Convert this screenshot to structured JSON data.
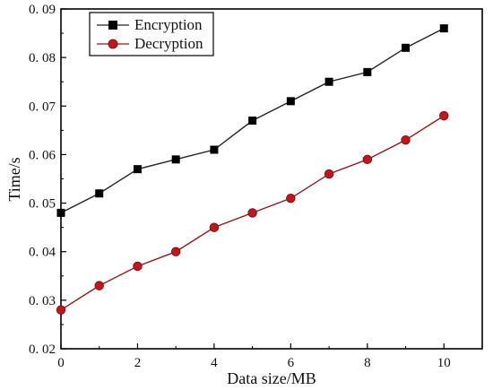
{
  "chart_data": {
    "type": "line",
    "title": "",
    "xlabel": "Data size/MB",
    "ylabel": "Time/s",
    "xlim": [
      0,
      11
    ],
    "ylim": [
      0.02,
      0.09
    ],
    "x_ticks": [
      0,
      2,
      4,
      6,
      8,
      10
    ],
    "x_tick_labels": [
      "0",
      "2",
      "4",
      "6",
      "8",
      "10"
    ],
    "y_ticks": [
      0.02,
      0.03,
      0.04,
      0.05,
      0.06,
      0.07,
      0.08,
      0.09
    ],
    "y_tick_labels": [
      "0. 02",
      "0. 03",
      "0. 04",
      "0. 05",
      "0. 06",
      "0. 07",
      "0. 08",
      "0. 09"
    ],
    "grid": false,
    "legend_position": "top-left",
    "x": [
      0,
      1,
      2,
      3,
      4,
      5,
      6,
      7,
      8,
      9,
      10
    ],
    "series": [
      {
        "name": "Encryption",
        "marker": "square",
        "line_color": "#222222",
        "marker_color": "#000000",
        "values": [
          0.048,
          0.052,
          0.057,
          0.059,
          0.061,
          0.067,
          0.071,
          0.075,
          0.077,
          0.082,
          0.086
        ]
      },
      {
        "name": "Decryption",
        "marker": "circle",
        "line_color": "#8b1a1a",
        "marker_color": "#c0161c",
        "values": [
          0.028,
          0.033,
          0.037,
          0.04,
          0.045,
          0.048,
          0.051,
          0.056,
          0.059,
          0.063,
          0.068
        ]
      }
    ]
  }
}
